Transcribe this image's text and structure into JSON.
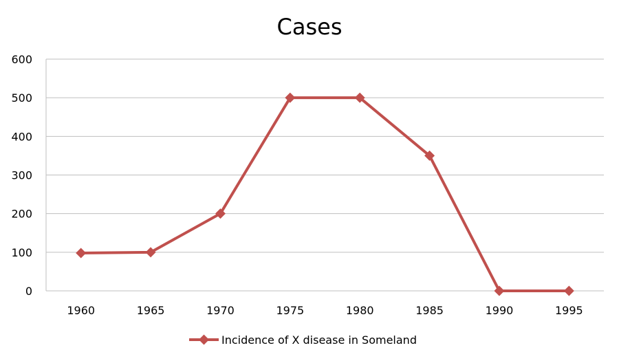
{
  "chart_data": {
    "type": "line",
    "title": "Cases",
    "xlabel": "",
    "ylabel": "",
    "categories": [
      "1960",
      "1965",
      "1970",
      "1975",
      "1980",
      "1985",
      "1990",
      "1995"
    ],
    "series": [
      {
        "name": "Incidence of X disease in Someland",
        "values": [
          98,
          100,
          200,
          500,
          500,
          350,
          0,
          0
        ],
        "color": "#c0504d",
        "marker": "diamond"
      }
    ],
    "ylim": [
      0,
      600
    ],
    "yticks": [
      "0",
      "100",
      "200",
      "300",
      "400",
      "500",
      "600"
    ],
    "grid": true,
    "legend": "bottom"
  }
}
